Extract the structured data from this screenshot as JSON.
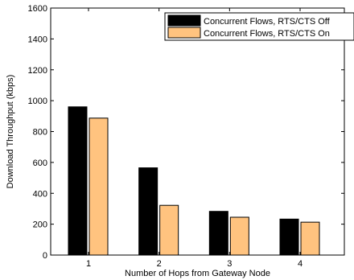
{
  "chart_data": {
    "type": "bar",
    "xlabel": "Number of Hops from Gateway Node",
    "ylabel": "Download Throughput (kbps)",
    "categories": [
      "1",
      "2",
      "3",
      "4"
    ],
    "ylim": [
      0,
      1600
    ],
    "yticks": [
      0,
      200,
      400,
      600,
      800,
      1000,
      1200,
      1400,
      1600
    ],
    "grid": false,
    "legend_position": "top-right",
    "series": [
      {
        "name": "Concurrent Flows, RTS/CTS Off",
        "color": "#000000",
        "values": [
          960,
          565,
          283,
          233
        ]
      },
      {
        "name": "Concurrent Flows, RTS/CTS On",
        "color": "#FFC37F",
        "values": [
          887,
          322,
          245,
          213
        ]
      }
    ]
  }
}
